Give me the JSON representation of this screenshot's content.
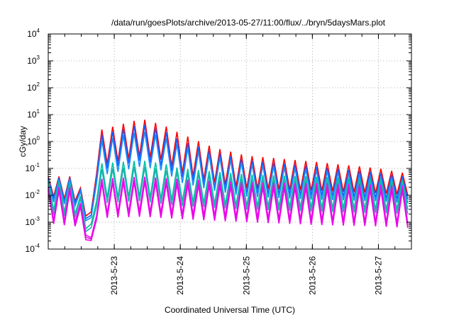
{
  "chart_data": {
    "type": "line",
    "title": "/data/run/goesPlots/archive/2013-05-27/11:00/flux/../bryn/5daysMars.plot",
    "xlabel": "Coordinated Universal Time (UTC)",
    "ylabel": "cGy/day",
    "x_scale": "time (days)",
    "y_scale": "log10",
    "xlim": [
      "2013-05-22T00:00",
      "2013-05-27T12:00"
    ],
    "ylim": [
      0.0001,
      10000
    ],
    "x_ticks": [
      {
        "at": "2013-05-23T00:00",
        "label": "2013-5-23"
      },
      {
        "at": "2013-05-24T00:00",
        "label": "2013-5-24"
      },
      {
        "at": "2013-05-25T00:00",
        "label": "2013-5-25"
      },
      {
        "at": "2013-05-26T00:00",
        "label": "2013-5-26"
      },
      {
        "at": "2013-05-27T00:00",
        "label": "2013-5-27"
      }
    ],
    "y_ticks": [
      {
        "value": 0.0001,
        "base": "10",
        "exp": "-4"
      },
      {
        "value": 0.001,
        "base": "10",
        "exp": "-3"
      },
      {
        "value": 0.01,
        "base": "10",
        "exp": "-2"
      },
      {
        "value": 0.1,
        "base": "10",
        "exp": "-1"
      },
      {
        "value": 1,
        "base": "10",
        "exp": "0"
      },
      {
        "value": 10,
        "base": "10",
        "exp": "1"
      },
      {
        "value": 100,
        "base": "10",
        "exp": "2"
      },
      {
        "value": 1000,
        "base": "10",
        "exp": "3"
      },
      {
        "value": 10000,
        "base": "10",
        "exp": "4"
      }
    ],
    "grid": "dotted, at major ticks",
    "legend": "none",
    "oscillation_period_hours": 3.9,
    "series_colors": [
      "#ff0000",
      "#1a5cff",
      "#1a8cff",
      "#00c4a0",
      "#20b0b0",
      "#ff00ff",
      "#cc22cc",
      "#ee00ee"
    ],
    "series": [
      {
        "color": "#ff0000",
        "envelope_high": [
          [
            "2013-05-22T00:00",
            0.05
          ],
          [
            "2013-05-22T10:00",
            0.05
          ],
          [
            "2013-05-22T14:00",
            0.005
          ],
          [
            "2013-05-22T16:00",
            0.002
          ],
          [
            "2013-05-22T17:00",
            0.05
          ],
          [
            "2013-05-22T17:45",
            2.5
          ],
          [
            "2013-05-23T10:00",
            7
          ],
          [
            "2013-05-23T18:00",
            4
          ],
          [
            "2013-05-24T00:00",
            2
          ],
          [
            "2013-05-24T12:00",
            0.6
          ],
          [
            "2013-05-25T00:00",
            0.3
          ],
          [
            "2013-05-26T00:00",
            0.18
          ],
          [
            "2013-05-27T00:00",
            0.1
          ],
          [
            "2013-05-27T12:00",
            0.06
          ]
        ],
        "envelope_low": [
          [
            "2013-05-22T00:00",
            0.01
          ],
          [
            "2013-05-22T10:00",
            0.006
          ],
          [
            "2013-05-22T14:00",
            0.0015
          ],
          [
            "2013-05-22T16:00",
            0.0012
          ],
          [
            "2013-05-22T17:00",
            0.01
          ],
          [
            "2013-05-22T17:45",
            0.12
          ],
          [
            "2013-05-23T10:00",
            0.3
          ],
          [
            "2013-05-23T18:00",
            0.2
          ],
          [
            "2013-05-24T00:00",
            0.07
          ],
          [
            "2013-05-24T12:00",
            0.03
          ],
          [
            "2013-05-25T00:00",
            0.018
          ],
          [
            "2013-05-26T00:00",
            0.015
          ],
          [
            "2013-05-27T00:00",
            0.012
          ],
          [
            "2013-05-27T12:00",
            0.01
          ]
        ]
      },
      {
        "color": "#1a5cff",
        "envelope_high": [
          [
            "2013-05-22T00:00",
            0.045
          ],
          [
            "2013-05-22T10:00",
            0.045
          ],
          [
            "2013-05-22T14:00",
            0.004
          ],
          [
            "2013-05-22T16:00",
            0.0015
          ],
          [
            "2013-05-22T17:00",
            0.04
          ],
          [
            "2013-05-22T17:45",
            1.6
          ],
          [
            "2013-05-23T10:00",
            4.5
          ],
          [
            "2013-05-23T18:00",
            2.5
          ],
          [
            "2013-05-24T00:00",
            1.1
          ],
          [
            "2013-05-24T12:00",
            0.4
          ],
          [
            "2013-05-25T00:00",
            0.2
          ],
          [
            "2013-05-26T00:00",
            0.12
          ],
          [
            "2013-05-27T00:00",
            0.07
          ],
          [
            "2013-05-27T12:00",
            0.045
          ]
        ],
        "envelope_low": [
          [
            "2013-05-22T00:00",
            0.008
          ],
          [
            "2013-05-22T10:00",
            0.005
          ],
          [
            "2013-05-22T14:00",
            0.0012
          ],
          [
            "2013-05-22T16:00",
            0.001
          ],
          [
            "2013-05-22T17:00",
            0.008
          ],
          [
            "2013-05-22T17:45",
            0.08
          ],
          [
            "2013-05-23T10:00",
            0.2
          ],
          [
            "2013-05-23T18:00",
            0.12
          ],
          [
            "2013-05-24T00:00",
            0.05
          ],
          [
            "2013-05-24T12:00",
            0.02
          ],
          [
            "2013-05-25T00:00",
            0.012
          ],
          [
            "2013-05-26T00:00",
            0.01
          ],
          [
            "2013-05-27T00:00",
            0.008
          ],
          [
            "2013-05-27T12:00",
            0.007
          ]
        ]
      },
      {
        "color": "#1a8cff",
        "envelope_high": [
          [
            "2013-05-22T00:00",
            0.04
          ],
          [
            "2013-05-22T10:00",
            0.04
          ],
          [
            "2013-05-22T14:00",
            0.0035
          ],
          [
            "2013-05-22T16:00",
            0.0012
          ],
          [
            "2013-05-22T17:00",
            0.035
          ],
          [
            "2013-05-22T17:45",
            1.0
          ],
          [
            "2013-05-23T10:00",
            2.5
          ],
          [
            "2013-05-23T18:00",
            1.5
          ],
          [
            "2013-05-24T00:00",
            0.7
          ],
          [
            "2013-05-24T12:00",
            0.3
          ],
          [
            "2013-05-25T00:00",
            0.15
          ],
          [
            "2013-05-26T00:00",
            0.09
          ],
          [
            "2013-05-27T00:00",
            0.05
          ],
          [
            "2013-05-27T12:00",
            0.035
          ]
        ],
        "envelope_low": [
          [
            "2013-05-22T00:00",
            0.006
          ],
          [
            "2013-05-22T10:00",
            0.004
          ],
          [
            "2013-05-22T14:00",
            0.001
          ],
          [
            "2013-05-22T16:00",
            0.0008
          ],
          [
            "2013-05-22T17:00",
            0.006
          ],
          [
            "2013-05-22T17:45",
            0.05
          ],
          [
            "2013-05-23T10:00",
            0.12
          ],
          [
            "2013-05-23T18:00",
            0.08
          ],
          [
            "2013-05-24T00:00",
            0.03
          ],
          [
            "2013-05-24T12:00",
            0.015
          ],
          [
            "2013-05-25T00:00",
            0.009
          ],
          [
            "2013-05-26T00:00",
            0.007
          ],
          [
            "2013-05-27T00:00",
            0.006
          ],
          [
            "2013-05-27T12:00",
            0.005
          ]
        ]
      },
      {
        "color": "#00c4a0",
        "envelope_high": [
          [
            "2013-05-22T00:00",
            0.035
          ],
          [
            "2013-05-22T10:00",
            0.03
          ],
          [
            "2013-05-22T14:00",
            0.002
          ],
          [
            "2013-05-22T16:00",
            0.0007
          ],
          [
            "2013-05-22T17:00",
            0.03
          ],
          [
            "2013-05-22T17:45",
            0.15
          ],
          [
            "2013-05-23T10:00",
            0.2
          ],
          [
            "2013-05-23T18:00",
            0.15
          ],
          [
            "2013-05-24T00:00",
            0.1
          ],
          [
            "2013-05-25T00:00",
            0.06
          ],
          [
            "2013-05-26T00:00",
            0.05
          ],
          [
            "2013-05-27T00:00",
            0.04
          ],
          [
            "2013-05-27T12:00",
            0.035
          ]
        ],
        "envelope_low": [
          [
            "2013-05-22T00:00",
            0.003
          ],
          [
            "2013-05-22T10:00",
            0.002
          ],
          [
            "2013-05-22T14:00",
            0.0005
          ],
          [
            "2013-05-22T16:00",
            0.0004
          ],
          [
            "2013-05-22T17:00",
            0.003
          ],
          [
            "2013-05-22T17:45",
            0.008
          ],
          [
            "2013-05-23T10:00",
            0.009
          ],
          [
            "2013-05-24T00:00",
            0.006
          ],
          [
            "2013-05-25T00:00",
            0.004
          ],
          [
            "2013-05-26T00:00",
            0.0035
          ],
          [
            "2013-05-27T00:00",
            0.003
          ],
          [
            "2013-05-27T12:00",
            0.003
          ]
        ]
      },
      {
        "color": "#20b0b0",
        "envelope_high": [
          [
            "2013-05-22T00:00",
            0.03
          ],
          [
            "2013-05-22T10:00",
            0.025
          ],
          [
            "2013-05-22T14:00",
            0.0015
          ],
          [
            "2013-05-22T16:00",
            0.0005
          ],
          [
            "2013-05-22T17:00",
            0.025
          ],
          [
            "2013-05-22T17:45",
            0.09
          ],
          [
            "2013-05-23T10:00",
            0.12
          ],
          [
            "2013-05-24T00:00",
            0.07
          ],
          [
            "2013-05-25T00:00",
            0.04
          ],
          [
            "2013-05-26T00:00",
            0.035
          ],
          [
            "2013-05-27T00:00",
            0.03
          ],
          [
            "2013-05-27T12:00",
            0.025
          ]
        ],
        "envelope_low": [
          [
            "2013-05-22T00:00",
            0.002
          ],
          [
            "2013-05-22T10:00",
            0.0015
          ],
          [
            "2013-05-22T14:00",
            0.0004
          ],
          [
            "2013-05-22T16:00",
            0.0003
          ],
          [
            "2013-05-22T17:00",
            0.002
          ],
          [
            "2013-05-22T17:45",
            0.005
          ],
          [
            "2013-05-23T10:00",
            0.006
          ],
          [
            "2013-05-24T00:00",
            0.004
          ],
          [
            "2013-05-25T00:00",
            0.003
          ],
          [
            "2013-05-26T00:00",
            0.0025
          ],
          [
            "2013-05-27T00:00",
            0.0022
          ],
          [
            "2013-05-27T12:00",
            0.002
          ]
        ]
      },
      {
        "color": "#ff00ff",
        "envelope_high": [
          [
            "2013-05-22T00:00",
            0.02
          ],
          [
            "2013-05-22T10:00",
            0.02
          ],
          [
            "2013-05-22T14:00",
            0.0008
          ],
          [
            "2013-05-22T16:00",
            0.0002
          ],
          [
            "2013-05-22T17:00",
            0.02
          ],
          [
            "2013-05-22T17:45",
            0.04
          ],
          [
            "2013-05-23T10:00",
            0.05
          ],
          [
            "2013-05-24T00:00",
            0.04
          ],
          [
            "2013-05-25T00:00",
            0.03
          ],
          [
            "2013-05-26T00:00",
            0.028
          ],
          [
            "2013-05-27T00:00",
            0.025
          ],
          [
            "2013-05-27T12:00",
            0.022
          ]
        ],
        "envelope_low": [
          [
            "2013-05-22T00:00",
            0.0012
          ],
          [
            "2013-05-22T10:00",
            0.001
          ],
          [
            "2013-05-22T14:00",
            0.0003
          ],
          [
            "2013-05-22T16:00",
            0.00016
          ],
          [
            "2013-05-22T17:00",
            0.0012
          ],
          [
            "2013-05-22T17:45",
            0.002
          ],
          [
            "2013-05-23T10:00",
            0.0025
          ],
          [
            "2013-05-24T00:00",
            0.002
          ],
          [
            "2013-05-25T00:00",
            0.0015
          ],
          [
            "2013-05-26T00:00",
            0.0012
          ],
          [
            "2013-05-27T00:00",
            0.001
          ],
          [
            "2013-05-27T12:00",
            0.0009
          ]
        ]
      },
      {
        "color": "#cc22cc",
        "envelope_high": [
          [
            "2013-05-22T00:00",
            0.018
          ],
          [
            "2013-05-22T10:00",
            0.017
          ],
          [
            "2013-05-22T14:00",
            0.0007
          ],
          [
            "2013-05-22T16:00",
            0.00018
          ],
          [
            "2013-05-22T17:00",
            0.018
          ],
          [
            "2013-05-22T17:45",
            0.035
          ],
          [
            "2013-05-23T10:00",
            0.04
          ],
          [
            "2013-05-24T00:00",
            0.03
          ],
          [
            "2013-05-25T00:00",
            0.025
          ],
          [
            "2013-05-26T00:00",
            0.022
          ],
          [
            "2013-05-27T00:00",
            0.02
          ],
          [
            "2013-05-27T12:00",
            0.018
          ]
        ],
        "envelope_low": [
          [
            "2013-05-22T00:00",
            0.001
          ],
          [
            "2013-05-22T10:00",
            0.0008
          ],
          [
            "2013-05-22T14:00",
            0.00025
          ],
          [
            "2013-05-22T16:00",
            0.00015
          ],
          [
            "2013-05-22T17:00",
            0.001
          ],
          [
            "2013-05-22T17:45",
            0.0016
          ],
          [
            "2013-05-23T10:00",
            0.002
          ],
          [
            "2013-05-24T00:00",
            0.0016
          ],
          [
            "2013-05-25T00:00",
            0.0012
          ],
          [
            "2013-05-26T00:00",
            0.001
          ],
          [
            "2013-05-27T00:00",
            0.0008
          ],
          [
            "2013-05-27T12:00",
            0.0007
          ]
        ]
      },
      {
        "color": "#ee00ee",
        "envelope_high": [
          [
            "2013-05-22T00:00",
            0.015
          ],
          [
            "2013-05-22T10:00",
            0.014
          ],
          [
            "2013-05-22T14:00",
            0.0006
          ],
          [
            "2013-05-22T16:00",
            0.00016
          ],
          [
            "2013-05-22T17:00",
            0.015
          ],
          [
            "2013-05-22T17:45",
            0.028
          ],
          [
            "2013-05-23T10:00",
            0.032
          ],
          [
            "2013-05-24T00:00",
            0.025
          ],
          [
            "2013-05-25T00:00",
            0.02
          ],
          [
            "2013-05-26T00:00",
            0.018
          ],
          [
            "2013-05-27T00:00",
            0.016
          ],
          [
            "2013-05-27T12:00",
            0.015
          ]
        ],
        "envelope_low": [
          [
            "2013-05-22T00:00",
            0.0009
          ],
          [
            "2013-05-22T10:00",
            0.0007
          ],
          [
            "2013-05-22T14:00",
            0.0002
          ],
          [
            "2013-05-22T16:00",
            0.00014
          ],
          [
            "2013-05-22T17:00",
            0.0009
          ],
          [
            "2013-05-22T17:45",
            0.0014
          ],
          [
            "2013-05-23T10:00",
            0.0016
          ],
          [
            "2013-05-24T00:00",
            0.0013
          ],
          [
            "2013-05-25T00:00",
            0.001
          ],
          [
            "2013-05-26T00:00",
            0.0008
          ],
          [
            "2013-05-27T00:00",
            0.0007
          ],
          [
            "2013-05-27T12:00",
            0.0006
          ]
        ]
      }
    ]
  }
}
